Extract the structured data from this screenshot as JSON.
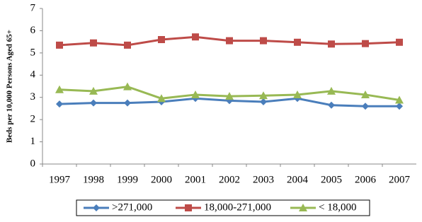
{
  "chart_data": {
    "type": "line",
    "y_label": "Beds per 10,000 Persons Aged 65+",
    "categories": [
      "1997",
      "1998",
      "1999",
      "2000",
      "2001",
      "2002",
      "2003",
      "2004",
      "2005",
      "2006",
      "2007"
    ],
    "series": [
      {
        "name": ">271,000",
        "color": "#4a7ebb",
        "marker": "diamond",
        "values": [
          2.7,
          2.75,
          2.75,
          2.8,
          2.95,
          2.85,
          2.8,
          2.95,
          2.65,
          2.6,
          2.6
        ]
      },
      {
        "name": "18,000-271,000",
        "color": "#be4b48",
        "marker": "square",
        "values": [
          5.35,
          5.45,
          5.35,
          5.6,
          5.72,
          5.55,
          5.55,
          5.48,
          5.4,
          5.42,
          5.48
        ]
      },
      {
        "name": "< 18,000",
        "color": "#98b954",
        "marker": "triangle",
        "values": [
          3.35,
          3.28,
          3.48,
          2.95,
          3.12,
          3.05,
          3.08,
          3.12,
          3.28,
          3.12,
          2.88
        ]
      }
    ],
    "ylim": [
      0,
      7
    ],
    "yticks": [
      0,
      1,
      2,
      3,
      4,
      5,
      6,
      7
    ],
    "grid": false,
    "legend": "bottom"
  }
}
